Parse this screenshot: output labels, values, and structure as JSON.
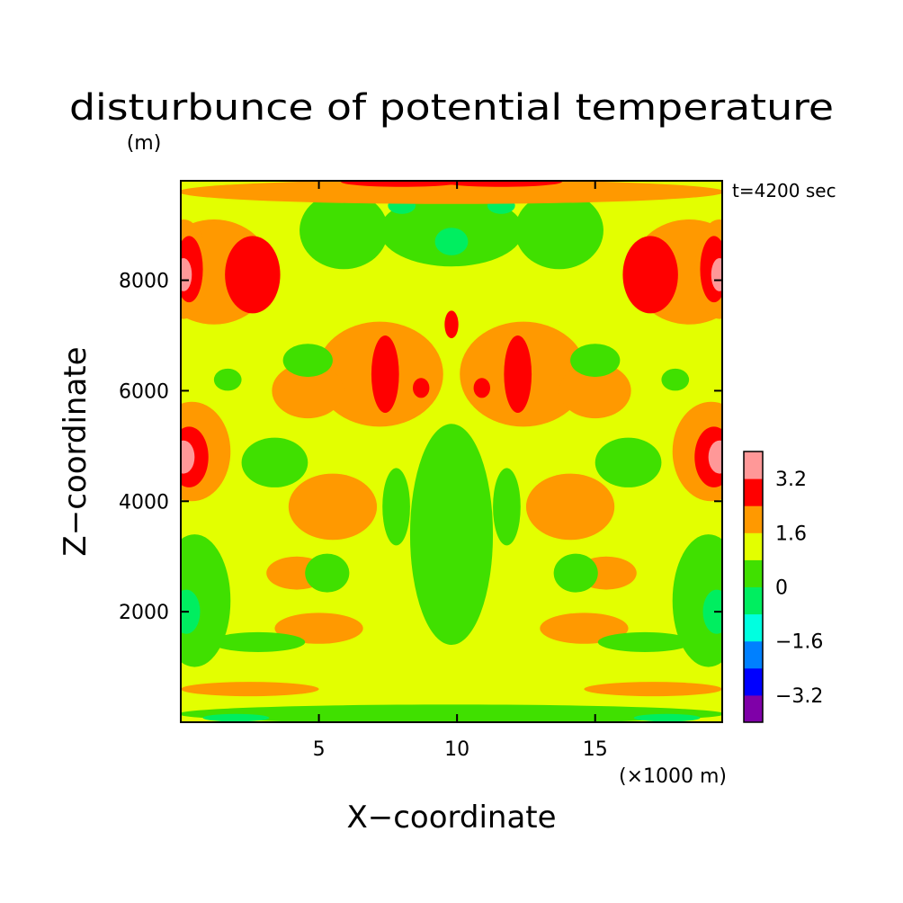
{
  "chart_data": {
    "type": "heatmap",
    "title": "disturbunce of potential temperature",
    "xlabel": "X−coordinate",
    "ylabel": "Z−coordinate",
    "xunit": "(×1000 m)",
    "yunit": "(m)",
    "time_label": "t=4200 sec",
    "xlim": [
      0,
      19.6
    ],
    "ylim": [
      0,
      9800
    ],
    "xticks": [
      5,
      10,
      15
    ],
    "xtick_labels": [
      "5",
      "10",
      "15"
    ],
    "yticks": [
      2000,
      4000,
      6000,
      8000
    ],
    "ytick_labels": [
      "2000",
      "4000",
      "6000",
      "8000"
    ],
    "background_level_color": "#e3ff00",
    "colorbar": {
      "levels": [
        -4.0,
        -3.2,
        -2.4,
        -1.6,
        -0.8,
        0.0,
        0.8,
        1.6,
        2.4,
        3.2,
        4.0
      ],
      "colors": [
        "#7f00a8",
        "#0000ff",
        "#0080ff",
        "#00ffe0",
        "#00ee60",
        "#40e000",
        "#e3ff00",
        "#ff9900",
        "#ff0000",
        "#ff9898"
      ],
      "tick_values": [
        -3.2,
        -1.6,
        0,
        1.6,
        3.2
      ],
      "tick_labels": [
        "−3.2",
        "−1.6",
        "0",
        "1.6",
        "3.2"
      ]
    },
    "regions": [
      {
        "level": 2.0,
        "x": 1.2,
        "z": 8150,
        "rx": 2.1,
        "rz": 950
      },
      {
        "level": 2.8,
        "x": 2.6,
        "z": 8100,
        "rx": 1.0,
        "rz": 700
      },
      {
        "level": 2.0,
        "x": 0.1,
        "z": 8200,
        "rx": 0.9,
        "rz": 900
      },
      {
        "level": 2.8,
        "x": 0.3,
        "z": 8200,
        "rx": 0.5,
        "rz": 600
      },
      {
        "level": 3.6,
        "x": 0.1,
        "z": 8100,
        "rx": 0.3,
        "rz": 300
      },
      {
        "level": 2.0,
        "x": 18.4,
        "z": 8150,
        "rx": 2.1,
        "rz": 950
      },
      {
        "level": 2.8,
        "x": 17.0,
        "z": 8100,
        "rx": 1.0,
        "rz": 700
      },
      {
        "level": 2.0,
        "x": 19.5,
        "z": 8200,
        "rx": 0.9,
        "rz": 900
      },
      {
        "level": 2.8,
        "x": 19.3,
        "z": 8200,
        "rx": 0.5,
        "rz": 600
      },
      {
        "level": 3.6,
        "x": 19.5,
        "z": 8100,
        "rx": 0.3,
        "rz": 300
      },
      {
        "level": 2.0,
        "x": 0.4,
        "z": 4900,
        "rx": 1.4,
        "rz": 900
      },
      {
        "level": 2.8,
        "x": 0.3,
        "z": 4800,
        "rx": 0.7,
        "rz": 550
      },
      {
        "level": 3.6,
        "x": 0.1,
        "z": 4800,
        "rx": 0.4,
        "rz": 300
      },
      {
        "level": 2.0,
        "x": 19.2,
        "z": 4900,
        "rx": 1.4,
        "rz": 900
      },
      {
        "level": 2.8,
        "x": 19.3,
        "z": 4800,
        "rx": 0.7,
        "rz": 550
      },
      {
        "level": 3.6,
        "x": 19.5,
        "z": 4800,
        "rx": 0.4,
        "rz": 300
      },
      {
        "level": 0.4,
        "x": 5.9,
        "z": 8900,
        "rx": 1.6,
        "rz": 700
      },
      {
        "level": 0.4,
        "x": 13.7,
        "z": 8900,
        "rx": 1.6,
        "rz": 700
      },
      {
        "level": 0.4,
        "x": 9.8,
        "z": 8900,
        "rx": 2.6,
        "rz": 650
      },
      {
        "level": -0.4,
        "x": 9.8,
        "z": 8700,
        "rx": 0.6,
        "rz": 250
      },
      {
        "level": -0.4,
        "x": 8.0,
        "z": 9350,
        "rx": 0.5,
        "rz": 150
      },
      {
        "level": -0.4,
        "x": 11.6,
        "z": 9350,
        "rx": 0.5,
        "rz": 150
      },
      {
        "level": 2.0,
        "x": 7.2,
        "z": 6300,
        "rx": 2.3,
        "rz": 950
      },
      {
        "level": 2.0,
        "x": 12.4,
        "z": 6300,
        "rx": 2.3,
        "rz": 950
      },
      {
        "level": 2.0,
        "x": 4.6,
        "z": 6000,
        "rx": 1.3,
        "rz": 500
      },
      {
        "level": 2.0,
        "x": 15.0,
        "z": 6000,
        "rx": 1.3,
        "rz": 500
      },
      {
        "level": 2.8,
        "x": 7.4,
        "z": 6300,
        "rx": 0.5,
        "rz": 700
      },
      {
        "level": 2.8,
        "x": 12.2,
        "z": 6300,
        "rx": 0.5,
        "rz": 700
      },
      {
        "level": 2.8,
        "x": 9.8,
        "z": 7200,
        "rx": 0.25,
        "rz": 250
      },
      {
        "level": 2.8,
        "x": 8.7,
        "z": 6050,
        "rx": 0.3,
        "rz": 180
      },
      {
        "level": 2.8,
        "x": 10.9,
        "z": 6050,
        "rx": 0.3,
        "rz": 180
      },
      {
        "level": 2.0,
        "x": 5.5,
        "z": 3900,
        "rx": 1.6,
        "rz": 600
      },
      {
        "level": 2.0,
        "x": 14.1,
        "z": 3900,
        "rx": 1.6,
        "rz": 600
      },
      {
        "level": 2.0,
        "x": 4.2,
        "z": 2700,
        "rx": 1.1,
        "rz": 300
      },
      {
        "level": 2.0,
        "x": 15.4,
        "z": 2700,
        "rx": 1.1,
        "rz": 300
      },
      {
        "level": 2.0,
        "x": 5.0,
        "z": 1700,
        "rx": 1.6,
        "rz": 280
      },
      {
        "level": 2.0,
        "x": 14.6,
        "z": 1700,
        "rx": 1.6,
        "rz": 280
      },
      {
        "level": 2.0,
        "x": 2.5,
        "z": 600,
        "rx": 2.5,
        "rz": 130
      },
      {
        "level": 2.0,
        "x": 17.1,
        "z": 600,
        "rx": 2.5,
        "rz": 130
      },
      {
        "level": 2.0,
        "x": 9.8,
        "z": 9600,
        "rx": 9.9,
        "rz": 220
      },
      {
        "level": 2.8,
        "x": 8.0,
        "z": 9780,
        "rx": 2.2,
        "rz": 90
      },
      {
        "level": 2.8,
        "x": 11.6,
        "z": 9780,
        "rx": 2.2,
        "rz": 90
      },
      {
        "level": 0.4,
        "x": 9.8,
        "z": 3400,
        "rx": 1.5,
        "rz": 2000
      },
      {
        "level": 0.4,
        "x": 7.8,
        "z": 3900,
        "rx": 0.5,
        "rz": 700
      },
      {
        "level": 0.4,
        "x": 11.8,
        "z": 3900,
        "rx": 0.5,
        "rz": 700
      },
      {
        "level": 0.4,
        "x": 3.4,
        "z": 4700,
        "rx": 1.2,
        "rz": 450
      },
      {
        "level": 0.4,
        "x": 16.2,
        "z": 4700,
        "rx": 1.2,
        "rz": 450
      },
      {
        "level": 0.4,
        "x": 4.6,
        "z": 6550,
        "rx": 0.9,
        "rz": 300
      },
      {
        "level": 0.4,
        "x": 15.0,
        "z": 6550,
        "rx": 0.9,
        "rz": 300
      },
      {
        "level": 0.4,
        "x": 1.7,
        "z": 6200,
        "rx": 0.5,
        "rz": 200
      },
      {
        "level": 0.4,
        "x": 17.9,
        "z": 6200,
        "rx": 0.5,
        "rz": 200
      },
      {
        "level": 0.4,
        "x": 0.5,
        "z": 2200,
        "rx": 1.3,
        "rz": 1200
      },
      {
        "level": 0.4,
        "x": 19.1,
        "z": 2200,
        "rx": 1.3,
        "rz": 1200
      },
      {
        "level": -0.4,
        "x": 0.2,
        "z": 2000,
        "rx": 0.5,
        "rz": 400
      },
      {
        "level": -0.4,
        "x": 19.4,
        "z": 2000,
        "rx": 0.5,
        "rz": 400
      },
      {
        "level": 0.4,
        "x": 5.3,
        "z": 2700,
        "rx": 0.8,
        "rz": 350
      },
      {
        "level": 0.4,
        "x": 14.3,
        "z": 2700,
        "rx": 0.8,
        "rz": 350
      },
      {
        "level": 0.4,
        "x": 2.8,
        "z": 1450,
        "rx": 1.7,
        "rz": 180
      },
      {
        "level": 0.4,
        "x": 16.8,
        "z": 1450,
        "rx": 1.7,
        "rz": 180
      },
      {
        "level": 0.4,
        "x": 9.8,
        "z": 150,
        "rx": 9.9,
        "rz": 170
      },
      {
        "level": -0.4,
        "x": 2.0,
        "z": 80,
        "rx": 1.2,
        "rz": 70
      },
      {
        "level": -0.4,
        "x": 17.6,
        "z": 80,
        "rx": 1.2,
        "rz": 70
      }
    ]
  }
}
